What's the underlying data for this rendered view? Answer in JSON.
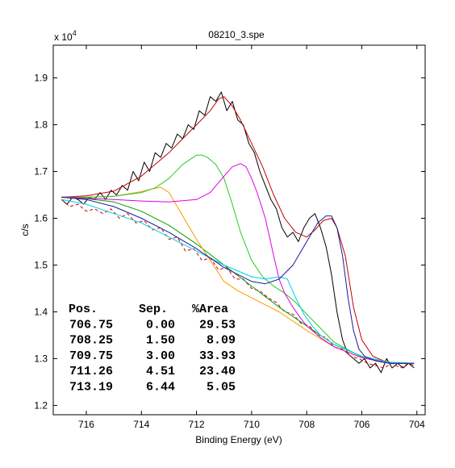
{
  "chart_data": {
    "type": "line",
    "title": "08210_3.spe",
    "xlabel": "Binding Energy (eV)",
    "ylabel": "c/s",
    "y_multiplier_label": "x 10",
    "y_multiplier_exponent": "4",
    "x_reversed": true,
    "xlim": [
      717.2,
      703.7
    ],
    "ylim": [
      1.18,
      1.97
    ],
    "x_ticks": [
      716,
      714,
      712,
      710,
      708,
      706,
      704
    ],
    "y_ticks": [
      1.2,
      1.3,
      1.4,
      1.5,
      1.6,
      1.7,
      1.8,
      1.9
    ],
    "y_tick_labels": [
      "1.2",
      "1.3",
      "1.4",
      "1.5",
      "1.6",
      "1.7",
      "1.8",
      "1.9"
    ],
    "grid": false,
    "series": [
      {
        "key": "raw",
        "color": "#000000",
        "dash": "",
        "x": [
          716.9,
          716.7,
          716.5,
          716.3,
          716.1,
          715.9,
          715.7,
          715.5,
          715.3,
          715.1,
          714.9,
          714.7,
          714.5,
          714.3,
          714.1,
          713.9,
          713.7,
          713.5,
          713.3,
          713.1,
          712.9,
          712.7,
          712.5,
          712.3,
          712.1,
          711.9,
          711.7,
          711.5,
          711.3,
          711.1,
          710.9,
          710.7,
          710.5,
          710.3,
          710.1,
          709.9,
          709.7,
          709.5,
          709.3,
          709.1,
          708.9,
          708.7,
          708.5,
          708.3,
          708.1,
          707.9,
          707.7,
          707.5,
          707.3,
          707.1,
          706.9,
          706.7,
          706.5,
          706.3,
          706.1,
          705.9,
          705.7,
          705.5,
          705.3,
          705.1,
          704.9,
          704.7,
          704.5,
          704.3,
          704.1
        ],
        "y": [
          1.64,
          1.63,
          1.645,
          1.64,
          1.63,
          1.645,
          1.64,
          1.655,
          1.64,
          1.66,
          1.65,
          1.67,
          1.66,
          1.7,
          1.68,
          1.72,
          1.7,
          1.74,
          1.73,
          1.76,
          1.75,
          1.78,
          1.77,
          1.8,
          1.79,
          1.83,
          1.82,
          1.86,
          1.85,
          1.87,
          1.83,
          1.85,
          1.81,
          1.8,
          1.76,
          1.74,
          1.7,
          1.67,
          1.64,
          1.62,
          1.58,
          1.56,
          1.57,
          1.55,
          1.58,
          1.6,
          1.61,
          1.58,
          1.54,
          1.48,
          1.4,
          1.34,
          1.31,
          1.3,
          1.29,
          1.3,
          1.28,
          1.29,
          1.27,
          1.3,
          1.28,
          1.29,
          1.28,
          1.29,
          1.28
        ]
      },
      {
        "key": "envelope",
        "color": "#c00000",
        "dash": "",
        "x": [
          716.9,
          716,
          715,
          714,
          713,
          712.5,
          712,
          711.5,
          711.2,
          711,
          710.7,
          710.4,
          710,
          709.6,
          709.2,
          708.8,
          708.4,
          708.0,
          707.7,
          707.4,
          707.1,
          706.9,
          706.6,
          706.3,
          706.0,
          705.6,
          705.2,
          704.8,
          704.4,
          704.1
        ],
        "y": [
          1.645,
          1.648,
          1.658,
          1.69,
          1.74,
          1.77,
          1.8,
          1.83,
          1.855,
          1.86,
          1.84,
          1.81,
          1.76,
          1.71,
          1.65,
          1.6,
          1.57,
          1.56,
          1.575,
          1.595,
          1.6,
          1.58,
          1.52,
          1.41,
          1.34,
          1.305,
          1.295,
          1.29,
          1.29,
          1.29
        ]
      },
      {
        "key": "residual",
        "color": "#d00000",
        "dash": "4 3",
        "x": [
          716.9,
          716.6,
          716.3,
          716.0,
          715.7,
          715.4,
          715.1,
          714.8,
          714.5,
          714.2,
          713.9,
          713.6,
          713.3,
          713.0,
          712.7,
          712.4,
          712.1,
          711.8,
          711.5,
          711.2,
          710.9,
          710.6,
          710.3,
          710.0,
          709.7,
          709.4,
          709.1,
          708.8,
          708.5,
          708.2,
          707.9,
          707.6,
          707.3,
          707.0,
          706.7,
          706.4,
          706.1,
          705.8,
          705.5,
          705.2,
          704.9,
          704.6,
          704.3,
          704.1
        ],
        "y": [
          1.64,
          1.625,
          1.63,
          1.615,
          1.62,
          1.61,
          1.62,
          1.6,
          1.61,
          1.59,
          1.595,
          1.575,
          1.58,
          1.555,
          1.56,
          1.53,
          1.535,
          1.51,
          1.515,
          1.49,
          1.495,
          1.47,
          1.47,
          1.45,
          1.445,
          1.43,
          1.42,
          1.4,
          1.395,
          1.375,
          1.37,
          1.35,
          1.345,
          1.325,
          1.32,
          1.305,
          1.3,
          1.29,
          1.285,
          1.28,
          1.29,
          1.28,
          1.29,
          1.285
        ]
      },
      {
        "key": "background",
        "color": "#00a000",
        "dash": "",
        "x": [
          716.9,
          716,
          715,
          714,
          713,
          712,
          711,
          710,
          709,
          708,
          707,
          706,
          705,
          704.1
        ],
        "y": [
          1.645,
          1.642,
          1.635,
          1.615,
          1.585,
          1.545,
          1.5,
          1.455,
          1.41,
          1.37,
          1.33,
          1.305,
          1.292,
          1.29
        ]
      },
      {
        "key": "peak-orange",
        "color": "#ff9900",
        "dash": "",
        "x": [
          716.9,
          716,
          715,
          714,
          713.6,
          713.3,
          713.0,
          712.7,
          712.3,
          712,
          711.5,
          711,
          710.5,
          710,
          709,
          708,
          707,
          706,
          705,
          704.1
        ],
        "y": [
          1.645,
          1.645,
          1.647,
          1.657,
          1.663,
          1.666,
          1.655,
          1.625,
          1.585,
          1.555,
          1.51,
          1.465,
          1.445,
          1.43,
          1.4,
          1.36,
          1.325,
          1.302,
          1.29,
          1.29
        ]
      },
      {
        "key": "peak-green",
        "color": "#22cc22",
        "dash": "",
        "x": [
          716.9,
          716,
          715,
          714,
          713.5,
          713,
          712.5,
          712,
          711.8,
          711.6,
          711.3,
          711,
          710.7,
          710.4,
          710,
          709.6,
          709.2,
          708.8,
          708.4,
          708,
          707,
          706,
          705,
          704.1
        ],
        "y": [
          1.645,
          1.645,
          1.647,
          1.655,
          1.665,
          1.685,
          1.715,
          1.735,
          1.735,
          1.73,
          1.715,
          1.685,
          1.63,
          1.57,
          1.51,
          1.475,
          1.455,
          1.44,
          1.42,
          1.395,
          1.335,
          1.303,
          1.29,
          1.29
        ]
      },
      {
        "key": "peak-magenta",
        "color": "#e000e0",
        "dash": "",
        "x": [
          716.9,
          716,
          715,
          714,
          713,
          712,
          711.5,
          711,
          710.7,
          710.4,
          710.2,
          710,
          709.8,
          709.5,
          709.2,
          709,
          708.8,
          708.5,
          708.2,
          708,
          707.5,
          707,
          706,
          705,
          704.1
        ],
        "y": [
          1.645,
          1.643,
          1.64,
          1.637,
          1.635,
          1.64,
          1.655,
          1.69,
          1.71,
          1.717,
          1.71,
          1.685,
          1.655,
          1.6,
          1.52,
          1.47,
          1.44,
          1.41,
          1.385,
          1.37,
          1.345,
          1.325,
          1.302,
          1.29,
          1.29
        ]
      },
      {
        "key": "peak-cyan",
        "color": "#00d0e0",
        "dash": "",
        "x": [
          716.9,
          716,
          715,
          714,
          713,
          712,
          711,
          710,
          709.5,
          709,
          708.7,
          708.4,
          708.1,
          707.8,
          707.5,
          707,
          706,
          705,
          704.1
        ],
        "y": [
          1.64,
          1.63,
          1.61,
          1.59,
          1.56,
          1.53,
          1.5,
          1.475,
          1.47,
          1.475,
          1.47,
          1.43,
          1.395,
          1.37,
          1.35,
          1.33,
          1.305,
          1.292,
          1.29
        ]
      },
      {
        "key": "peak-navy",
        "color": "#1a1a9a",
        "dash": "",
        "x": [
          716.9,
          716,
          715,
          714,
          713,
          712,
          711,
          710,
          709.5,
          709,
          708.5,
          708,
          707.6,
          707.3,
          707.1,
          706.9,
          706.7,
          706.5,
          706.3,
          706.1,
          705.9,
          705.5,
          705,
          704.5,
          704.1
        ],
        "y": [
          1.645,
          1.64,
          1.625,
          1.6,
          1.57,
          1.535,
          1.495,
          1.465,
          1.46,
          1.47,
          1.5,
          1.55,
          1.59,
          1.605,
          1.605,
          1.58,
          1.52,
          1.43,
          1.36,
          1.32,
          1.305,
          1.295,
          1.29,
          1.29,
          1.29
        ]
      }
    ]
  },
  "annotation": {
    "headers": [
      "Pos.",
      "Sep.",
      "%Area"
    ],
    "rows": [
      [
        "706.75",
        "0.00",
        "29.53"
      ],
      [
        "708.25",
        "1.50",
        "8.09"
      ],
      [
        "709.75",
        "3.00",
        "33.93"
      ],
      [
        "711.26",
        "4.51",
        "23.40"
      ],
      [
        "713.19",
        "6.44",
        "5.05"
      ]
    ]
  }
}
